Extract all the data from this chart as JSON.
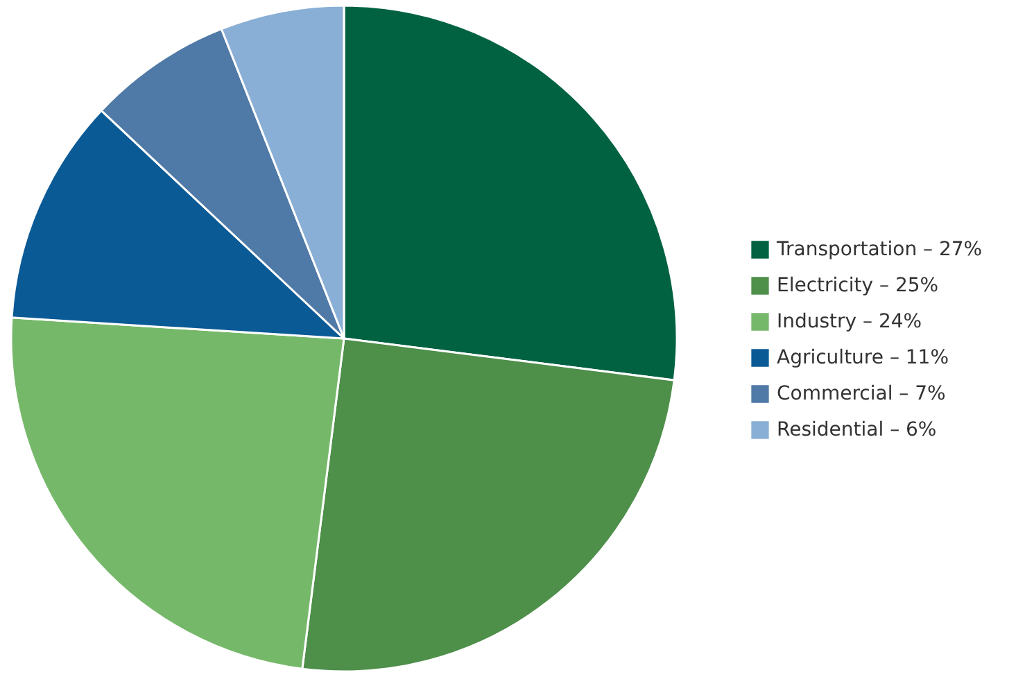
{
  "chart_data": {
    "type": "pie",
    "categories": [
      "Transportation – 27%",
      "Electricity – 25%",
      "Industry – 24%",
      "Agriculture – 11%",
      "Commercial – 7%",
      "Residential – 6%"
    ],
    "values": [
      27,
      25,
      24,
      11,
      7,
      6
    ],
    "colors": [
      "#006241",
      "#4e8f4a",
      "#76b86a",
      "#0a5a96",
      "#4f79a6",
      "#8aafd6"
    ],
    "legend": "right"
  }
}
